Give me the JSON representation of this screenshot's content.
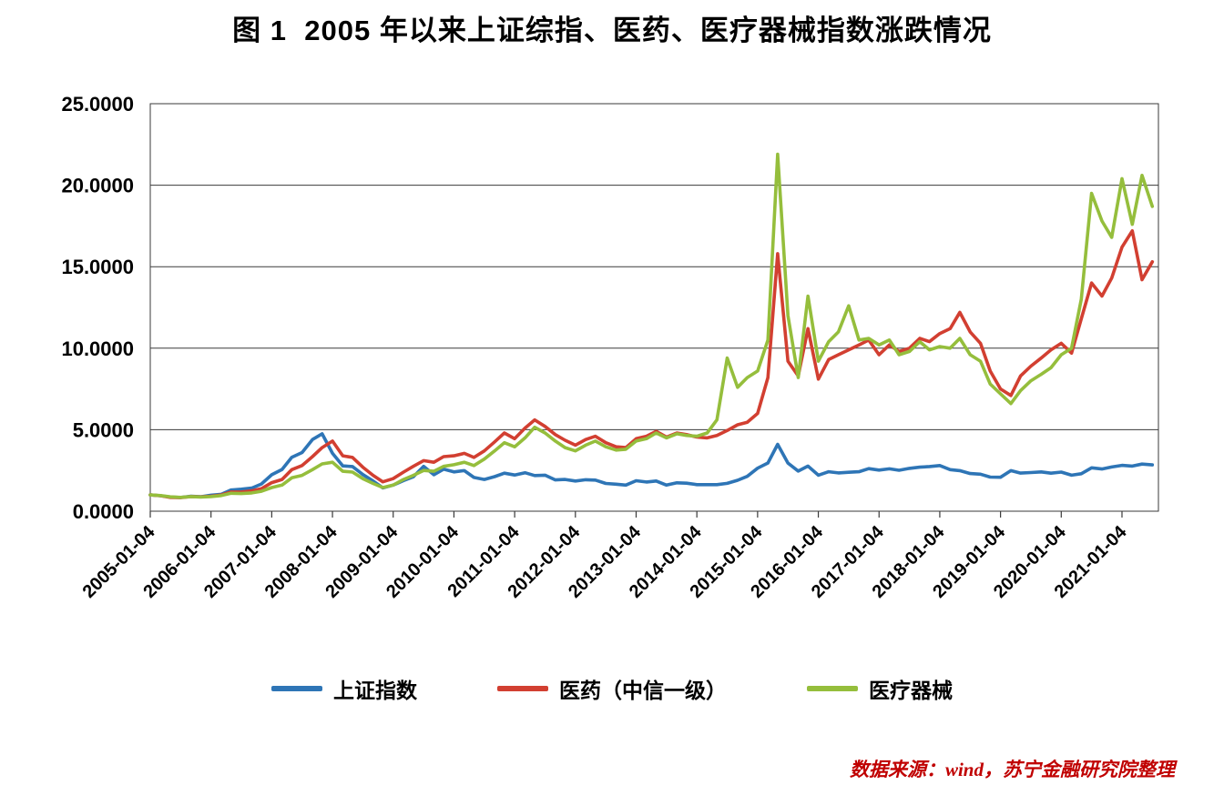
{
  "source_note": "数据来源：wind，苏宁金融研究院整理",
  "chart_data": {
    "type": "line",
    "title": "图 1  2005 年以来上证综指、医药、医疗器械指数涨跌情况",
    "xlabel": "",
    "ylabel": "",
    "xlim": [
      2005.0,
      2021.6
    ],
    "ylim": [
      0,
      25
    ],
    "grid": "horizontal",
    "legend_position": "bottom",
    "y_tick_labels": [
      "0.0000",
      "5.0000",
      "10.0000",
      "15.0000",
      "20.0000",
      "25.0000"
    ],
    "y_tick_values": [
      0,
      5,
      10,
      15,
      20,
      25
    ],
    "x_ticks": [
      "2005-01-04",
      "2006-01-04",
      "2007-01-04",
      "2008-01-04",
      "2009-01-04",
      "2010-01-04",
      "2011-01-04",
      "2012-01-04",
      "2013-01-04",
      "2014-01-04",
      "2015-01-04",
      "2016-01-04",
      "2017-01-04",
      "2018-01-04",
      "2019-01-04",
      "2020-01-04",
      "2021-01-04"
    ],
    "x_tick_positions": [
      2005,
      2006,
      2007,
      2008,
      2009,
      2010,
      2011,
      2012,
      2013,
      2014,
      2015,
      2016,
      2017,
      2018,
      2019,
      2020,
      2021
    ],
    "x": [
      2005.0,
      2005.17,
      2005.33,
      2005.5,
      2005.67,
      2005.83,
      2006.0,
      2006.17,
      2006.33,
      2006.5,
      2006.67,
      2006.83,
      2007.0,
      2007.17,
      2007.33,
      2007.5,
      2007.67,
      2007.83,
      2008.0,
      2008.17,
      2008.33,
      2008.5,
      2008.67,
      2008.83,
      2009.0,
      2009.17,
      2009.33,
      2009.5,
      2009.67,
      2009.83,
      2010.0,
      2010.17,
      2010.33,
      2010.5,
      2010.67,
      2010.83,
      2011.0,
      2011.17,
      2011.33,
      2011.5,
      2011.67,
      2011.83,
      2012.0,
      2012.17,
      2012.33,
      2012.5,
      2012.67,
      2012.83,
      2013.0,
      2013.17,
      2013.33,
      2013.5,
      2013.67,
      2013.83,
      2014.0,
      2014.17,
      2014.33,
      2014.5,
      2014.67,
      2014.83,
      2015.0,
      2015.17,
      2015.33,
      2015.5,
      2015.67,
      2015.83,
      2016.0,
      2016.17,
      2016.33,
      2016.5,
      2016.67,
      2016.83,
      2017.0,
      2017.17,
      2017.33,
      2017.5,
      2017.67,
      2017.83,
      2018.0,
      2018.17,
      2018.33,
      2018.5,
      2018.67,
      2018.83,
      2019.0,
      2019.17,
      2019.33,
      2019.5,
      2019.67,
      2019.83,
      2020.0,
      2020.17,
      2020.33,
      2020.5,
      2020.67,
      2020.83,
      2021.0,
      2021.17,
      2021.33,
      2021.5
    ],
    "series": [
      {
        "name": "上证指数",
        "key": "sse-composite",
        "color": "#2E75B6",
        "values": [
          1.0,
          0.95,
          0.87,
          0.84,
          0.92,
          0.89,
          0.98,
          1.04,
          1.3,
          1.35,
          1.42,
          1.67,
          2.24,
          2.56,
          3.31,
          3.6,
          4.4,
          4.75,
          3.55,
          2.78,
          2.74,
          2.25,
          1.85,
          1.43,
          1.6,
          1.88,
          2.11,
          2.75,
          2.24,
          2.58,
          2.41,
          2.49,
          2.07,
          1.95,
          2.12,
          2.33,
          2.22,
          2.36,
          2.19,
          2.21,
          1.92,
          1.95,
          1.85,
          1.93,
          1.91,
          1.7,
          1.66,
          1.6,
          1.87,
          1.79,
          1.85,
          1.6,
          1.74,
          1.72,
          1.63,
          1.63,
          1.63,
          1.71,
          1.9,
          2.14,
          2.64,
          2.96,
          4.1,
          2.95,
          2.46,
          2.77,
          2.21,
          2.42,
          2.35,
          2.39,
          2.42,
          2.61,
          2.52,
          2.6,
          2.51,
          2.63,
          2.7,
          2.74,
          2.8,
          2.55,
          2.49,
          2.31,
          2.27,
          2.09,
          2.08,
          2.49,
          2.34,
          2.37,
          2.41,
          2.33,
          2.4,
          2.21,
          2.3,
          2.66,
          2.59,
          2.71,
          2.81,
          2.77,
          2.89,
          2.84
        ]
      },
      {
        "name": "医药（中信一级）",
        "key": "pharma-citic",
        "color": "#D23F31",
        "values": [
          1.0,
          0.95,
          0.85,
          0.83,
          0.9,
          0.88,
          0.92,
          1.0,
          1.18,
          1.18,
          1.25,
          1.38,
          1.75,
          1.95,
          2.55,
          2.8,
          3.35,
          3.9,
          4.3,
          3.4,
          3.3,
          2.7,
          2.2,
          1.8,
          2.0,
          2.4,
          2.75,
          3.1,
          3.0,
          3.35,
          3.4,
          3.55,
          3.3,
          3.7,
          4.25,
          4.8,
          4.45,
          5.1,
          5.6,
          5.2,
          4.7,
          4.35,
          4.05,
          4.4,
          4.6,
          4.2,
          3.95,
          3.9,
          4.45,
          4.6,
          4.9,
          4.55,
          4.8,
          4.7,
          4.55,
          4.5,
          4.65,
          4.95,
          5.3,
          5.45,
          6.0,
          8.2,
          15.8,
          9.2,
          8.3,
          11.2,
          8.1,
          9.3,
          9.6,
          9.9,
          10.2,
          10.5,
          9.6,
          10.2,
          9.8,
          10.0,
          10.6,
          10.4,
          10.9,
          11.2,
          12.2,
          11.0,
          10.3,
          8.6,
          7.5,
          7.1,
          8.3,
          8.9,
          9.4,
          9.9,
          10.3,
          9.7,
          11.8,
          14.0,
          13.2,
          14.3,
          16.2,
          17.2,
          14.2,
          15.3
        ]
      },
      {
        "name": "医疗器械",
        "key": "medical-devices",
        "color": "#95BE3C",
        "values": [
          1.0,
          0.96,
          0.88,
          0.85,
          0.9,
          0.87,
          0.9,
          0.96,
          1.1,
          1.08,
          1.12,
          1.22,
          1.45,
          1.6,
          2.05,
          2.2,
          2.55,
          2.9,
          3.0,
          2.45,
          2.4,
          2.0,
          1.7,
          1.45,
          1.6,
          1.95,
          2.2,
          2.5,
          2.45,
          2.75,
          2.85,
          3.0,
          2.8,
          3.2,
          3.7,
          4.2,
          3.95,
          4.5,
          5.15,
          4.8,
          4.3,
          3.9,
          3.7,
          4.05,
          4.3,
          3.95,
          3.75,
          3.8,
          4.3,
          4.45,
          4.8,
          4.5,
          4.75,
          4.65,
          4.6,
          4.8,
          5.6,
          9.4,
          7.6,
          8.2,
          8.6,
          10.5,
          21.9,
          12.0,
          8.2,
          13.2,
          9.2,
          10.4,
          11.0,
          12.6,
          10.5,
          10.6,
          10.2,
          10.5,
          9.6,
          9.8,
          10.4,
          9.9,
          10.1,
          10.0,
          10.6,
          9.6,
          9.2,
          7.8,
          7.2,
          6.6,
          7.4,
          8.0,
          8.4,
          8.8,
          9.6,
          10.0,
          13.0,
          19.5,
          17.8,
          16.8,
          20.4,
          17.6,
          20.6,
          18.7
        ]
      }
    ]
  }
}
